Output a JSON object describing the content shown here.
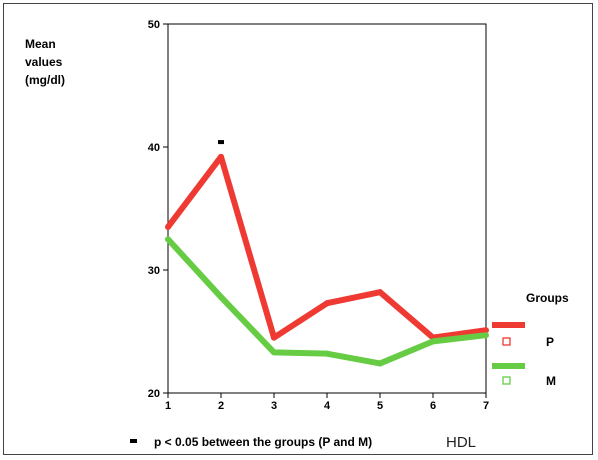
{
  "chart_data": {
    "type": "line",
    "ylabel_lines": [
      "Mean",
      "values",
      "(mg/dl)"
    ],
    "x": [
      1,
      2,
      3,
      4,
      5,
      6,
      7
    ],
    "ylim": [
      20,
      50
    ],
    "yticks": [
      20,
      30,
      40,
      50
    ],
    "series": [
      {
        "name": "P",
        "color": "#ee3a33",
        "values": [
          33.5,
          39.2,
          24.5,
          27.3,
          28.2,
          24.5,
          25.1
        ]
      },
      {
        "name": "M",
        "color": "#66cc44",
        "values": [
          32.5,
          27.8,
          23.3,
          23.2,
          22.4,
          24.2,
          24.7
        ]
      }
    ],
    "legend_title": "Groups",
    "legend_position": "right",
    "significance_marks": [
      {
        "x": 2,
        "y": 40.4
      }
    ],
    "footnote": "p < 0.05 between the groups (P and M)",
    "figure_label": "HDL",
    "grid": false
  }
}
